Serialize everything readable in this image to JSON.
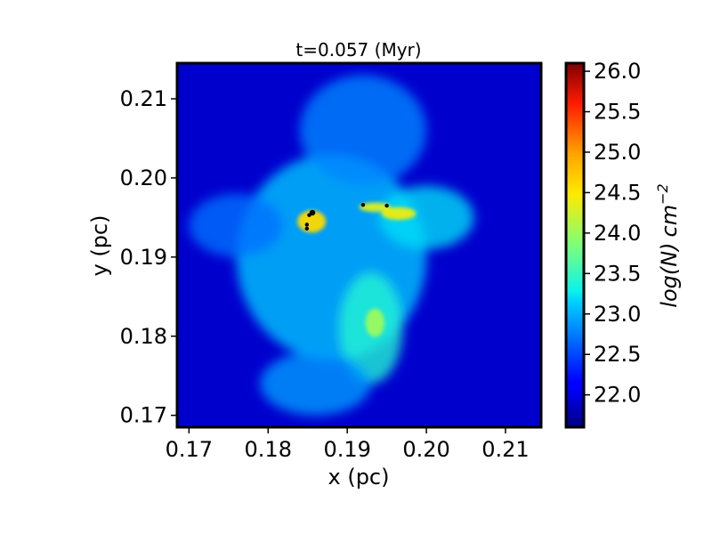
{
  "chart_data": {
    "type": "heatmap",
    "title": "t=0.057 (Myr)",
    "xlabel": "x (pc)",
    "ylabel": "y (pc)",
    "xlim": [
      0.1685,
      0.2145
    ],
    "ylim": [
      0.1685,
      0.2145
    ],
    "x_ticks": [
      0.17,
      0.18,
      0.19,
      0.2,
      0.21
    ],
    "x_tick_labels": [
      "0.17",
      "0.18",
      "0.19",
      "0.20",
      "0.21"
    ],
    "y_ticks": [
      0.17,
      0.18,
      0.19,
      0.2,
      0.21
    ],
    "y_tick_labels": [
      "0.17",
      "0.18",
      "0.19",
      "0.20",
      "0.21"
    ],
    "colorbar": {
      "label_main": "log(N)",
      "label_unit": "cm",
      "label_exp": "−2",
      "range": [
        21.6,
        26.1
      ],
      "ticks": [
        22.0,
        22.5,
        23.0,
        23.5,
        24.0,
        24.5,
        25.0,
        25.5,
        26.0
      ],
      "tick_labels": [
        "22.0",
        "22.5",
        "23.0",
        "23.5",
        "24.0",
        "24.5",
        "25.0",
        "25.5",
        "26.0"
      ],
      "colormap": "jet"
    },
    "background_level": 21.9,
    "features": [
      {
        "name": "central-cloud",
        "x": 0.188,
        "y": 0.19,
        "sx": 0.012,
        "sy": 0.013,
        "level": 23.1
      },
      {
        "name": "upper-band",
        "x": 0.192,
        "y": 0.206,
        "sx": 0.008,
        "sy": 0.007,
        "level": 22.8
      },
      {
        "name": "west-wing",
        "x": 0.176,
        "y": 0.194,
        "sx": 0.006,
        "sy": 0.004,
        "level": 22.7
      },
      {
        "name": "east-filament",
        "x": 0.2,
        "y": 0.195,
        "sx": 0.006,
        "sy": 0.004,
        "level": 23.2
      },
      {
        "name": "lower-stream",
        "x": 0.193,
        "y": 0.181,
        "sx": 0.004,
        "sy": 0.007,
        "level": 23.4
      },
      {
        "name": "south-plume",
        "x": 0.186,
        "y": 0.174,
        "sx": 0.007,
        "sy": 0.004,
        "level": 22.9
      },
      {
        "name": "core-hub",
        "x": 0.1855,
        "y": 0.1945,
        "sx": 0.0018,
        "sy": 0.0014,
        "level": 24.6
      },
      {
        "name": "knot-east",
        "x": 0.1935,
        "y": 0.1963,
        "sx": 0.002,
        "sy": 0.0006,
        "level": 24.3
      },
      {
        "name": "knot-south",
        "x": 0.1935,
        "y": 0.1817,
        "sx": 0.0012,
        "sy": 0.0018,
        "level": 24.0
      },
      {
        "name": "ridge-arc",
        "x": 0.1965,
        "y": 0.1955,
        "sx": 0.0022,
        "sy": 0.0008,
        "level": 24.4
      }
    ],
    "sinks": [
      {
        "x": 0.1856,
        "y": 0.1956
      },
      {
        "x": 0.1852,
        "y": 0.1953
      },
      {
        "x": 0.1849,
        "y": 0.1941
      },
      {
        "x": 0.1849,
        "y": 0.1936
      },
      {
        "x": 0.192,
        "y": 0.1966
      },
      {
        "x": 0.195,
        "y": 0.1965
      }
    ]
  }
}
